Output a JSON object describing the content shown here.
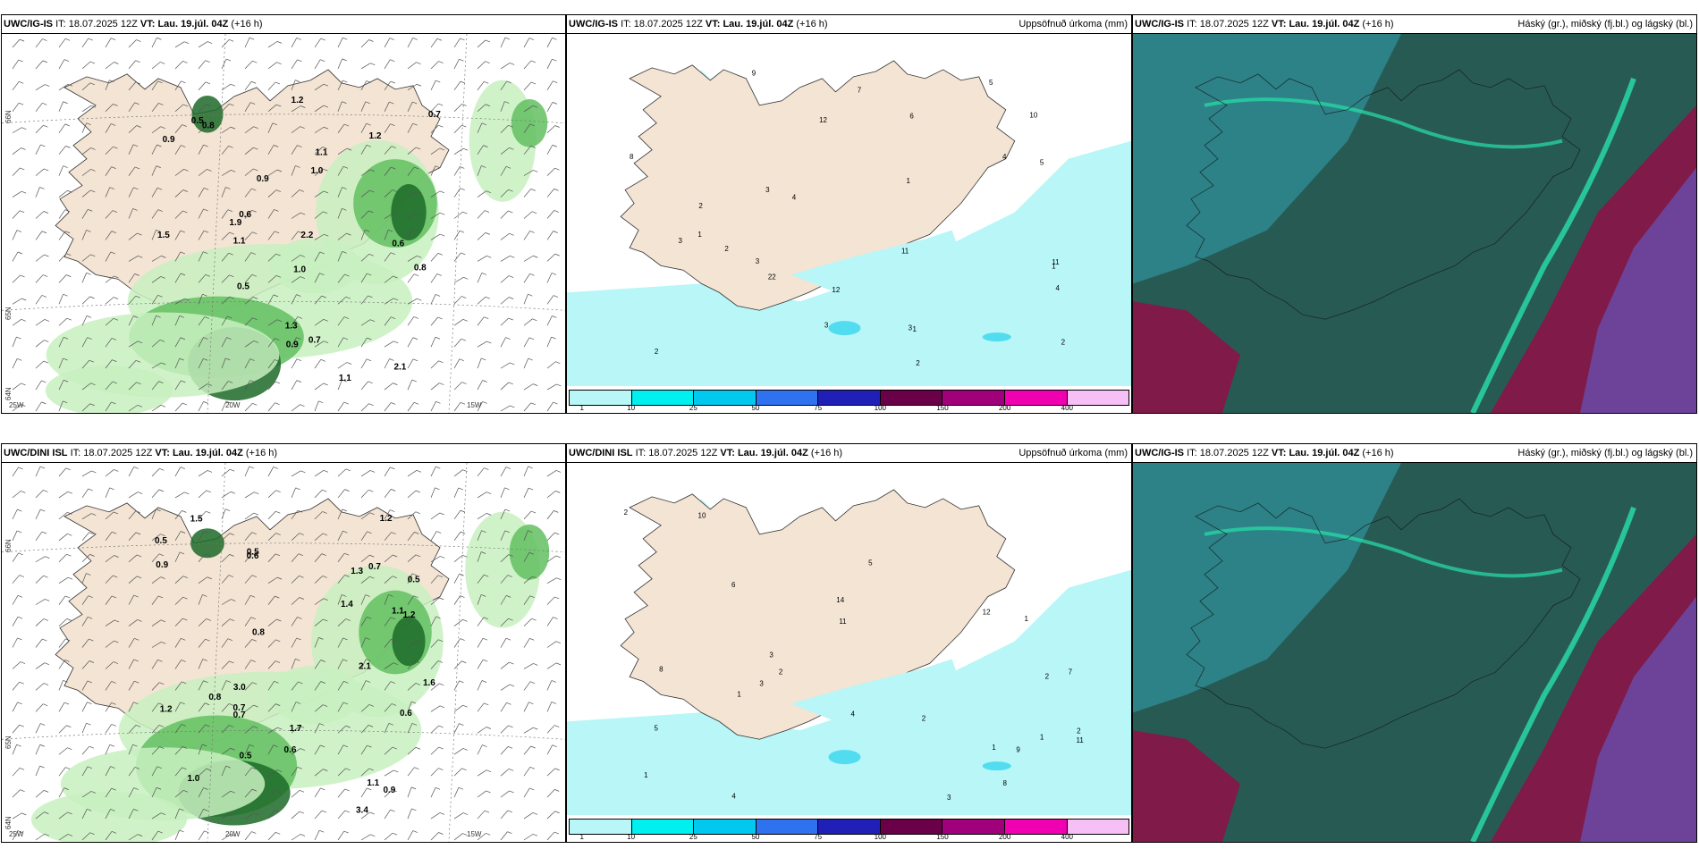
{
  "panels": [
    {
      "id": "p1",
      "model": "UWC/IG-IS",
      "it_label": "IT:",
      "it_value": "18.07.2025 12Z",
      "vt_label": "VT:",
      "vt_value": "Lau. 19.júl. 04Z",
      "lead": "(+16 h)",
      "right_title": "",
      "kind": "wind",
      "labels": [
        "0.5",
        "1.1",
        "1.2",
        "1.5",
        "0.9",
        "0.7",
        "0.6",
        "1.0",
        "0.8",
        "1.3",
        "1.9",
        "2.2",
        "2.1",
        "0.9",
        "1.1",
        "1.2",
        "0.5",
        "0.6",
        "0.7",
        "0.8",
        "0.9",
        "1.0",
        "1.1"
      ],
      "lat_labels": [
        "66N",
        "65N",
        "64N"
      ],
      "lon_labels": [
        "20W",
        "15W",
        "25W"
      ]
    },
    {
      "id": "p2",
      "model": "UWC/IG-IS",
      "it_label": "IT:",
      "it_value": "18.07.2025 12Z",
      "vt_label": "VT:",
      "vt_value": "Lau. 19.júl. 04Z",
      "lead": "(+16 h)",
      "right_title": "Uppsöfnuð úrkoma (mm)",
      "kind": "precip",
      "labels": [
        "1",
        "3",
        "3",
        "3",
        "2",
        "2",
        "2",
        "1",
        "1",
        "4",
        "4",
        "5",
        "2",
        "3",
        "4",
        "5",
        "7",
        "9",
        "11",
        "12",
        "10",
        "8",
        "6",
        "12",
        "11",
        "22",
        "3",
        "2",
        "1"
      ],
      "colorbar": [
        "1",
        "10",
        "25",
        "50",
        "75",
        "100",
        "150",
        "200",
        "400"
      ]
    },
    {
      "id": "p3",
      "model": "UWC/IG-IS",
      "it_label": "IT:",
      "it_value": "18.07.2025 12Z",
      "vt_label": "VT:",
      "vt_value": "Lau. 19.júl. 04Z",
      "lead": "(+16 h)",
      "right_title": "Háský (gr.), miðský (fj.bl.) og lágský (bl.)",
      "kind": "cloud"
    },
    {
      "id": "p4",
      "model": "UWC/DINI ISL",
      "it_label": "IT:",
      "it_value": "18.07.2025 12Z",
      "vt_label": "VT:",
      "vt_value": "Lau. 19.júl. 04Z",
      "lead": "(+16 h)",
      "right_title": "",
      "kind": "wind",
      "labels": [
        "1.2",
        "0.9",
        "0.5",
        "1.6",
        "2.1",
        "0.5",
        "0.5",
        "0.7",
        "0.6",
        "1.2",
        "0.6",
        "0.5",
        "0.7",
        "1.1",
        "0.8",
        "0.6",
        "0.7",
        "1.2",
        "1.0",
        "1.1",
        "1.4",
        "1.7",
        "1.3",
        "3.0",
        "3.4",
        "0.8",
        "0.9",
        "1.5"
      ],
      "lat_labels": [
        "66N",
        "65N",
        "64N"
      ],
      "lon_labels": [
        "20W",
        "15W",
        "25W"
      ]
    },
    {
      "id": "p5",
      "model": "UWC/DINI ISL",
      "it_label": "IT:",
      "it_value": "18.07.2025 12Z",
      "vt_label": "VT:",
      "vt_value": "Lau. 19.júl. 04Z",
      "lead": "(+16 h)",
      "right_title": "Uppsöfnuð úrkoma (mm)",
      "kind": "precip",
      "labels": [
        "2",
        "1",
        "1",
        "1",
        "2",
        "2",
        "3",
        "1",
        "2",
        "4",
        "5",
        "6",
        "8",
        "9",
        "10",
        "11",
        "14",
        "12",
        "7",
        "3",
        "2",
        "1",
        "3",
        "4",
        "5",
        "11",
        "8"
      ],
      "colorbar": [
        "1",
        "10",
        "25",
        "50",
        "75",
        "100",
        "150",
        "200",
        "400"
      ]
    },
    {
      "id": "p6",
      "model": "UWC/IG-IS",
      "it_label": "IT:",
      "it_value": "18.07.2025 12Z",
      "vt_label": "VT:",
      "vt_value": "Lau. 19.júl. 04Z",
      "lead": "(+16 h)",
      "right_title": "Háský (gr.), miðský (fj.bl.) og lágský (bl.)",
      "kind": "cloud"
    }
  ],
  "colors": {
    "land": "#f3e4d4",
    "precip_light": "#b8f6f8",
    "precip_mid": "#52dcf0",
    "green_light": "#c8f0c0",
    "green_mid": "#62c060",
    "green_dark": "#1c6a28",
    "cloud_base": "#285a54",
    "cloud_high": "#2e8c94",
    "cloud_mid": "#6a4aa8",
    "cloud_low": "#801a48",
    "cb_0": "#b8f6f8",
    "cb_1": "#00f0f0",
    "cb_2": "#00c8ee",
    "cb_3": "#2e72f0",
    "cb_4": "#2020b8",
    "cb_5": "#6a0048",
    "cb_6": "#a0007a",
    "cb_7": "#f000b0",
    "cb_8": "#f6c0f6"
  }
}
